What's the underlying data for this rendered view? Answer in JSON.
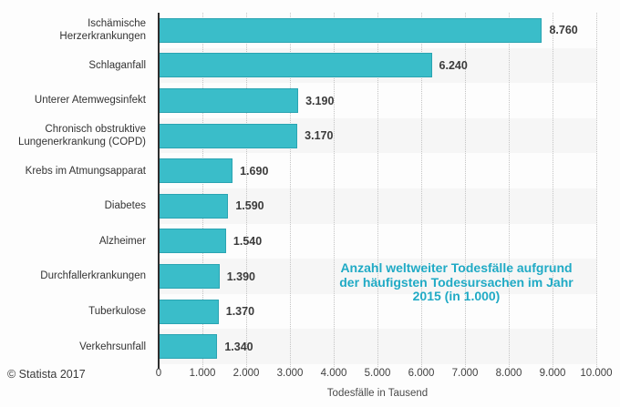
{
  "chart_data": {
    "type": "bar",
    "orientation": "horizontal",
    "categories": [
      "Ischämische Herzerkrankungen",
      "Schlaganfall",
      "Unterer Atemwegsinfekt",
      "Chronisch obstruktive Lungenerkrankung (COPD)",
      "Krebs im Atmungsapparat",
      "Diabetes",
      "Alzheimer",
      "Durchfallerkrankungen",
      "Tuberkulose",
      "Verkehrsunfall"
    ],
    "values": [
      8760,
      6240,
      3190,
      3170,
      1690,
      1590,
      1540,
      1390,
      1370,
      1340
    ],
    "value_labels": [
      "8.760",
      "6.240",
      "3.190",
      "3.170",
      "1.690",
      "1.590",
      "1.540",
      "1.390",
      "1.370",
      "1.340"
    ],
    "xlabel": "Todesfälle in Tausend",
    "xlim": [
      0,
      10000
    ],
    "x_ticks": [
      0,
      1000,
      2000,
      3000,
      4000,
      5000,
      6000,
      7000,
      8000,
      9000,
      10000
    ],
    "x_tick_labels": [
      "0",
      "1.000",
      "2.000",
      "3.000",
      "4.000",
      "5.000",
      "6.000",
      "7.000",
      "8.000",
      "9.000",
      "10.000"
    ],
    "grid": "vertical-dotted",
    "legend": "none",
    "bar_color": "#3abdc9",
    "bar_border_color": "#2aa4b2",
    "band_color": "#f6f6f6",
    "annotation": {
      "lines": [
        "Anzahl weltweiter Todesfälle aufgrund",
        "der häufigsten Todesursachen im Jahr",
        "2015 (in 1.000)"
      ],
      "color": "#20aac5"
    }
  },
  "footer": {
    "copyright": "© Statista 2017"
  }
}
